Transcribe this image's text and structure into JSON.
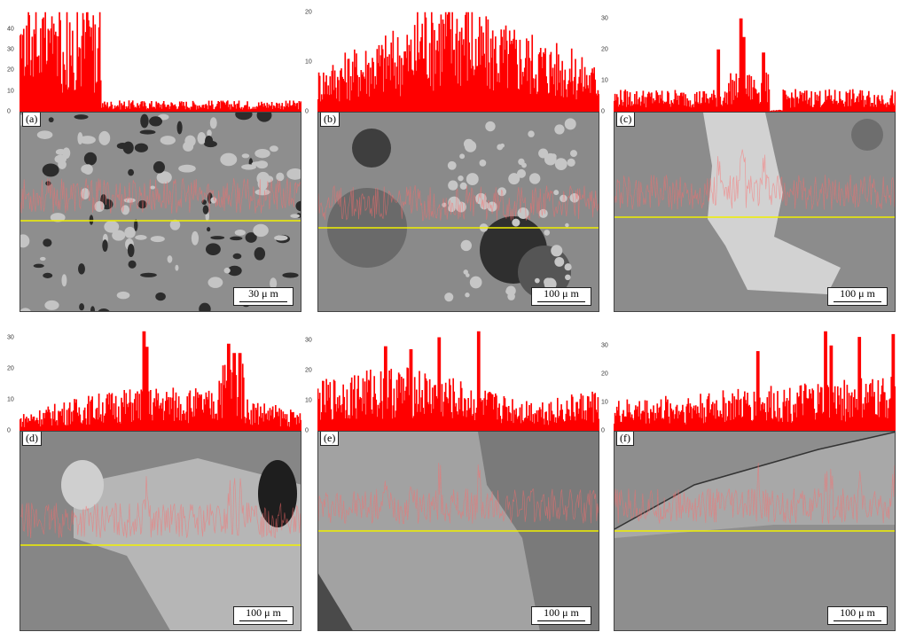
{
  "panels": [
    {
      "label": "(a)",
      "scale": "30 μ m",
      "ticks": [
        "40",
        "30",
        "20",
        "10",
        "0"
      ]
    },
    {
      "label": "(b)",
      "scale": "100 μ m",
      "ticks": [
        "20",
        "10",
        "0"
      ]
    },
    {
      "label": "(c)",
      "scale": "100 μ m",
      "ticks": [
        "30",
        "20",
        "10",
        "0"
      ]
    },
    {
      "label": "(d)",
      "scale": "100 μ m",
      "ticks": [
        "30",
        "20",
        "10",
        "0"
      ]
    },
    {
      "label": "(e)",
      "scale": "100 μ m",
      "ticks": [
        "30",
        "20",
        "10",
        "0"
      ]
    },
    {
      "label": "(f)",
      "scale": "100 μ m",
      "ticks": [
        "30",
        "20",
        "10",
        "0"
      ]
    }
  ],
  "colors": {
    "spectrum": "#ff0000",
    "scan_line": "#f0f000",
    "trace": "#ff6b6b"
  }
}
